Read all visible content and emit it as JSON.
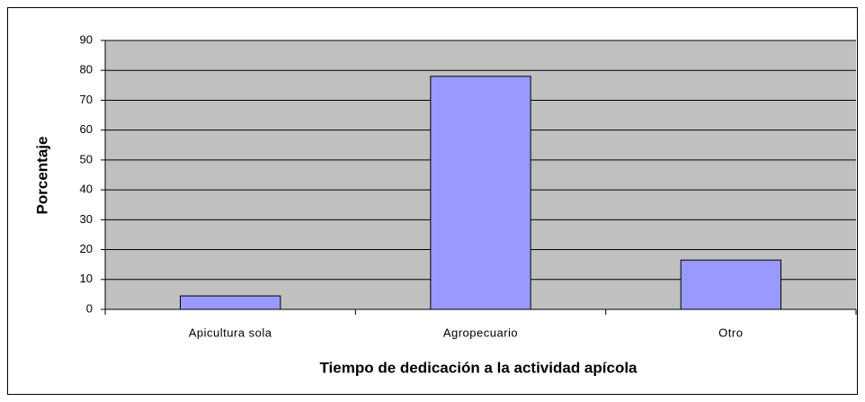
{
  "chart_data": {
    "type": "bar",
    "x_label": "Tiempo de dedicación a la actividad apícola",
    "y_label": "Porcentaje",
    "categories": [
      "Apicultura sola",
      "Agropecuario",
      "Otro"
    ],
    "values": [
      4.5,
      78,
      16.5
    ],
    "color": "#9999ff",
    "ylim": [
      0,
      90
    ],
    "yticks": [
      0,
      10,
      20,
      30,
      40,
      50,
      60,
      70,
      80,
      90
    ],
    "grid": true
  }
}
